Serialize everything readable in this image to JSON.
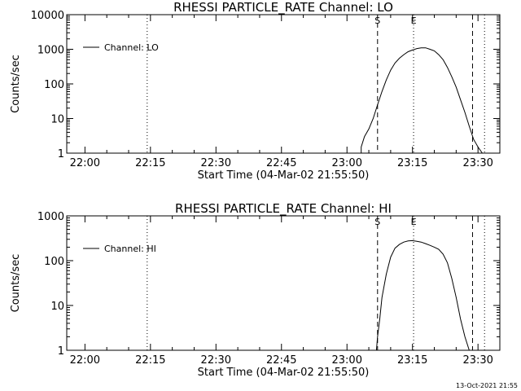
{
  "footer": {
    "stamp": "13-Oct-2021 21:55"
  },
  "chart_data": [
    {
      "type": "line",
      "title": "RHESSI PARTICLE_RATE Channel: LO",
      "xlabel": "Start Time (04-Mar-02 21:55:50)",
      "ylabel": "Counts/sec",
      "y_scale": "log",
      "ylim": [
        1,
        10000
      ],
      "xlim": [
        "21:55:50",
        "23:35:00"
      ],
      "x_ticks": [
        "22:00",
        "22:15",
        "22:30",
        "22:45",
        "23:00",
        "23:15",
        "23:30"
      ],
      "y_ticks": [
        "1",
        "10",
        "100",
        "1000",
        "10000"
      ],
      "legend": {
        "position": "top-left",
        "entries": [
          "Channel: LO"
        ]
      },
      "grid": false,
      "vertical_markers": [
        {
          "time": "22:14:15",
          "style": "dotted",
          "label": ""
        },
        {
          "time": "23:07:00",
          "style": "dashed",
          "label": "S"
        },
        {
          "time": "23:15:15",
          "style": "dotted",
          "label": "E"
        },
        {
          "time": "23:28:45",
          "style": "dashed",
          "label": ""
        },
        {
          "time": "23:31:30",
          "style": "dotted",
          "label": ""
        }
      ],
      "series": [
        {
          "name": "Channel: LO",
          "x": [
            "23:02:00",
            "23:03:15",
            "23:03:15",
            "23:04:00",
            "23:05:00",
            "23:06:00",
            "23:07:00",
            "23:08:00",
            "23:09:00",
            "23:10:00",
            "23:11:00",
            "23:12:00",
            "23:13:00",
            "23:14:00",
            "23:15:00",
            "23:16:00",
            "23:17:00",
            "23:18:00",
            "23:19:00",
            "23:20:00",
            "23:21:00",
            "23:22:00",
            "23:23:00",
            "23:24:00",
            "23:25:00",
            "23:26:00",
            "23:27:00",
            "23:28:00",
            "23:29:00",
            "23:30:00",
            "23:31:00"
          ],
          "y": [
            1,
            1,
            1.5,
            3,
            5,
            10,
            25,
            60,
            130,
            250,
            400,
            550,
            700,
            850,
            950,
            1050,
            1100,
            1100,
            1000,
            900,
            700,
            500,
            300,
            160,
            80,
            35,
            15,
            6,
            2.5,
            1.5,
            1
          ]
        }
      ]
    },
    {
      "type": "line",
      "title": "RHESSI PARTICLE_RATE Channel: HI",
      "xlabel": "Start Time (04-Mar-02 21:55:50)",
      "ylabel": "Counts/sec",
      "y_scale": "log",
      "ylim": [
        1,
        1000
      ],
      "xlim": [
        "21:55:50",
        "23:35:00"
      ],
      "x_ticks": [
        "22:00",
        "22:15",
        "22:30",
        "22:45",
        "23:00",
        "23:15",
        "23:30"
      ],
      "y_ticks": [
        "1",
        "10",
        "100",
        "1000"
      ],
      "legend": {
        "position": "top-left",
        "entries": [
          "Channel: HI"
        ]
      },
      "grid": false,
      "vertical_markers": [
        {
          "time": "22:14:15",
          "style": "dotted",
          "label": ""
        },
        {
          "time": "23:07:00",
          "style": "dashed",
          "label": "S"
        },
        {
          "time": "23:15:15",
          "style": "dotted",
          "label": "E"
        },
        {
          "time": "23:28:45",
          "style": "dashed",
          "label": ""
        },
        {
          "time": "23:31:30",
          "style": "dotted",
          "label": ""
        }
      ],
      "series": [
        {
          "name": "Channel: HI",
          "x": [
            "23:06:45",
            "23:07:00",
            "23:07:30",
            "23:08:00",
            "23:09:00",
            "23:10:00",
            "23:11:00",
            "23:12:00",
            "23:13:00",
            "23:14:00",
            "23:15:00",
            "23:16:00",
            "23:17:00",
            "23:18:00",
            "23:19:00",
            "23:20:00",
            "23:21:00",
            "23:22:00",
            "23:23:00",
            "23:24:00",
            "23:25:00",
            "23:26:00",
            "23:27:00",
            "23:28:00"
          ],
          "y": [
            1,
            2,
            5,
            15,
            50,
            120,
            190,
            230,
            260,
            275,
            280,
            270,
            260,
            240,
            220,
            200,
            180,
            140,
            90,
            40,
            15,
            5,
            2,
            1
          ]
        }
      ]
    }
  ]
}
